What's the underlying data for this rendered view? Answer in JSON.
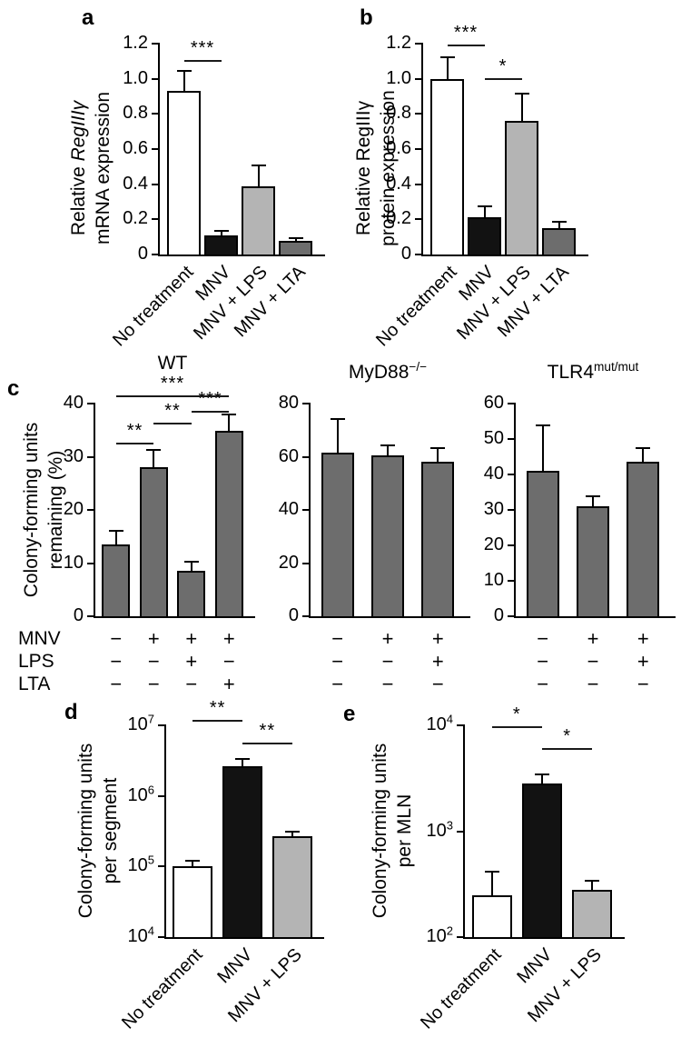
{
  "panels": {
    "a": "a",
    "b": "b",
    "c": "c",
    "d": "d",
    "e": "e"
  },
  "matrix": {
    "row_labels": [
      "MNV",
      "LPS",
      "LTA"
    ]
  },
  "colors": {
    "white": "#ffffff",
    "black": "#121212",
    "light": "#b4b4b4",
    "dark": "#6d6d6d",
    "axis": "#000000"
  },
  "chart_data": [
    {
      "id": "a",
      "type": "bar",
      "scale": "linear",
      "title": null,
      "ylabel_lines": [
        "Relative *RegIIIγ*",
        "mRNA expression"
      ],
      "ylim": [
        0,
        1.2
      ],
      "yticks": [
        {
          "v": 0,
          "label": "0"
        },
        {
          "v": 0.2,
          "label": "0.2"
        },
        {
          "v": 0.4,
          "label": "0.4"
        },
        {
          "v": 0.6,
          "label": "0.6"
        },
        {
          "v": 0.8,
          "label": "0.8"
        },
        {
          "v": 1.0,
          "label": "1.0"
        },
        {
          "v": 1.2,
          "label": "1.2"
        }
      ],
      "categories": [
        "No treatment",
        "MNV",
        "MNV + LPS",
        "MNV + LTA"
      ],
      "values": [
        0.93,
        0.11,
        0.39,
        0.08
      ],
      "errors": [
        0.12,
        0.03,
        0.12,
        0.02
      ],
      "bar_colors": [
        "white",
        "black",
        "light",
        "dark"
      ],
      "sig": [
        {
          "from": 0,
          "to": 1,
          "y": 1.1,
          "label": "***"
        }
      ]
    },
    {
      "id": "b",
      "type": "bar",
      "scale": "linear",
      "title": null,
      "ylabel_lines": [
        "Relative RegIIIγ",
        "protein expression"
      ],
      "ylim": [
        0,
        1.2
      ],
      "yticks": [
        {
          "v": 0,
          "label": "0"
        },
        {
          "v": 0.2,
          "label": "0.2"
        },
        {
          "v": 0.4,
          "label": "0.4"
        },
        {
          "v": 0.6,
          "label": "0.6"
        },
        {
          "v": 0.8,
          "label": "0.8"
        },
        {
          "v": 1.0,
          "label": "1.0"
        },
        {
          "v": 1.2,
          "label": "1.2"
        }
      ],
      "categories": [
        "No treatment",
        "MNV",
        "MNV + LPS",
        "MNV + LTA"
      ],
      "values": [
        1.0,
        0.21,
        0.76,
        0.15
      ],
      "errors": [
        0.13,
        0.07,
        0.16,
        0.04
      ],
      "bar_colors": [
        "white",
        "black",
        "light",
        "dark"
      ],
      "sig": [
        {
          "from": 0,
          "to": 1,
          "y": 1.19,
          "label": "***"
        },
        {
          "from": 1,
          "to": 2,
          "y": 1.0,
          "label": "*"
        }
      ]
    },
    {
      "id": "c-wt",
      "type": "bar",
      "scale": "linear",
      "title": "WT",
      "ylabel_lines": [
        "Colony-forming units",
        "remaining (%)"
      ],
      "ylim": [
        0,
        40
      ],
      "yticks": [
        {
          "v": 0,
          "label": "0"
        },
        {
          "v": 10,
          "label": "10"
        },
        {
          "v": 20,
          "label": "20"
        },
        {
          "v": 30,
          "label": "30"
        },
        {
          "v": 40,
          "label": "40"
        }
      ],
      "values": [
        13.5,
        28,
        8.5,
        34.8
      ],
      "errors": [
        2.8,
        3.4,
        2.0,
        3.4
      ],
      "bar_colors": [
        "dark",
        "dark",
        "dark",
        "dark"
      ],
      "matrix": [
        [
          "−",
          "+",
          "+",
          "+"
        ],
        [
          "−",
          "−",
          "+",
          "−"
        ],
        [
          "−",
          "−",
          "−",
          "+"
        ]
      ],
      "sig": [
        {
          "from": 0,
          "to": 1,
          "y": 32.5,
          "label": "**"
        },
        {
          "from": 1,
          "to": 2,
          "y": 36.3,
          "label": "**"
        },
        {
          "from": 2,
          "to": 3,
          "y": 38.5,
          "label": "***"
        },
        {
          "from": 0,
          "to": 3,
          "y": 41.3,
          "label": "***"
        }
      ]
    },
    {
      "id": "c-myd88",
      "type": "bar",
      "scale": "linear",
      "title": "MyD88^{−/−}",
      "ylabel_lines": null,
      "ylim": [
        0,
        80
      ],
      "yticks": [
        {
          "v": 0,
          "label": "0"
        },
        {
          "v": 20,
          "label": "20"
        },
        {
          "v": 40,
          "label": "40"
        },
        {
          "v": 60,
          "label": "60"
        },
        {
          "v": 80,
          "label": "80"
        }
      ],
      "values": [
        61.5,
        60.5,
        58
      ],
      "errors": [
        13,
        4,
        5.5
      ],
      "bar_colors": [
        "dark",
        "dark",
        "dark"
      ],
      "matrix": [
        [
          "−",
          "+",
          "+"
        ],
        [
          "−",
          "−",
          "+"
        ],
        [
          "−",
          "−",
          "−"
        ]
      ],
      "sig": []
    },
    {
      "id": "c-tlr4",
      "type": "bar",
      "scale": "linear",
      "title": "TLR4^{mut/mut}",
      "ylabel_lines": null,
      "ylim": [
        0,
        60
      ],
      "yticks": [
        {
          "v": 0,
          "label": "0"
        },
        {
          "v": 10,
          "label": "10"
        },
        {
          "v": 20,
          "label": "20"
        },
        {
          "v": 30,
          "label": "30"
        },
        {
          "v": 40,
          "label": "40"
        },
        {
          "v": 50,
          "label": "50"
        },
        {
          "v": 60,
          "label": "60"
        }
      ],
      "values": [
        41,
        31,
        43.5
      ],
      "errors": [
        13,
        3,
        4.3
      ],
      "bar_colors": [
        "dark",
        "dark",
        "dark"
      ],
      "matrix": [
        [
          "−",
          "+",
          "+"
        ],
        [
          "−",
          "−",
          "+"
        ],
        [
          "−",
          "−",
          "−"
        ]
      ],
      "sig": []
    },
    {
      "id": "d",
      "type": "bar",
      "scale": "log",
      "title": null,
      "ylabel_lines": [
        "Colony-forming units",
        "per segment"
      ],
      "ylim": [
        10000,
        10000000
      ],
      "yticks": [
        {
          "v": 10000,
          "label": "10^{4}"
        },
        {
          "v": 100000,
          "label": "10^{5}"
        },
        {
          "v": 1000000,
          "label": "10^{6}"
        },
        {
          "v": 10000000,
          "label": "10^{7}"
        }
      ],
      "categories": [
        "No treatment",
        "MNV",
        "MNV + LPS"
      ],
      "values": [
        100000,
        2600000,
        270000
      ],
      "errors": [
        25000,
        800000,
        50000
      ],
      "bar_colors": [
        "white",
        "black",
        "light"
      ],
      "sig": [
        {
          "from": 0,
          "to": 1,
          "y": 11500000,
          "label": "**"
        },
        {
          "from": 1,
          "to": 2,
          "y": 5500000,
          "label": "**"
        }
      ]
    },
    {
      "id": "e",
      "type": "bar",
      "scale": "log",
      "title": null,
      "ylabel_lines": [
        "Colony-forming units",
        "per MLN"
      ],
      "ylim": [
        100,
        10000
      ],
      "yticks": [
        {
          "v": 100,
          "label": "10^{2}"
        },
        {
          "v": 1000,
          "label": "10^{3}"
        },
        {
          "v": 10000,
          "label": "10^{4}"
        }
      ],
      "categories": [
        "No treatment",
        "MNV",
        "MNV + LPS"
      ],
      "values": [
        250,
        2800,
        280
      ],
      "errors": [
        170,
        700,
        70
      ],
      "bar_colors": [
        "white",
        "black",
        "light"
      ],
      "sig": [
        {
          "from": 0,
          "to": 1,
          "y": 9700,
          "label": "*"
        },
        {
          "from": 1,
          "to": 2,
          "y": 6000,
          "label": "*"
        }
      ]
    }
  ]
}
